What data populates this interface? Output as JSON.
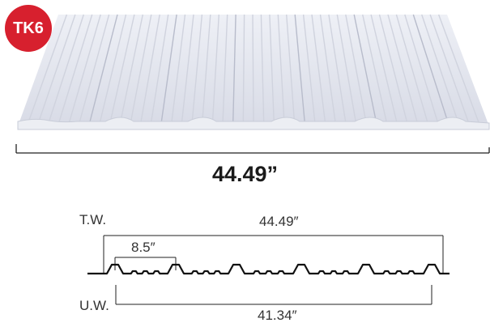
{
  "badge": {
    "label": "TK6",
    "color": "#d7202e"
  },
  "product_image": {
    "overall_width": "44.49”"
  },
  "profile": {
    "top_label": "T.W.",
    "bottom_label": "U.W.",
    "top_width": "44.49″",
    "pitch": "8.5″",
    "bottom_width": "41.34″"
  }
}
